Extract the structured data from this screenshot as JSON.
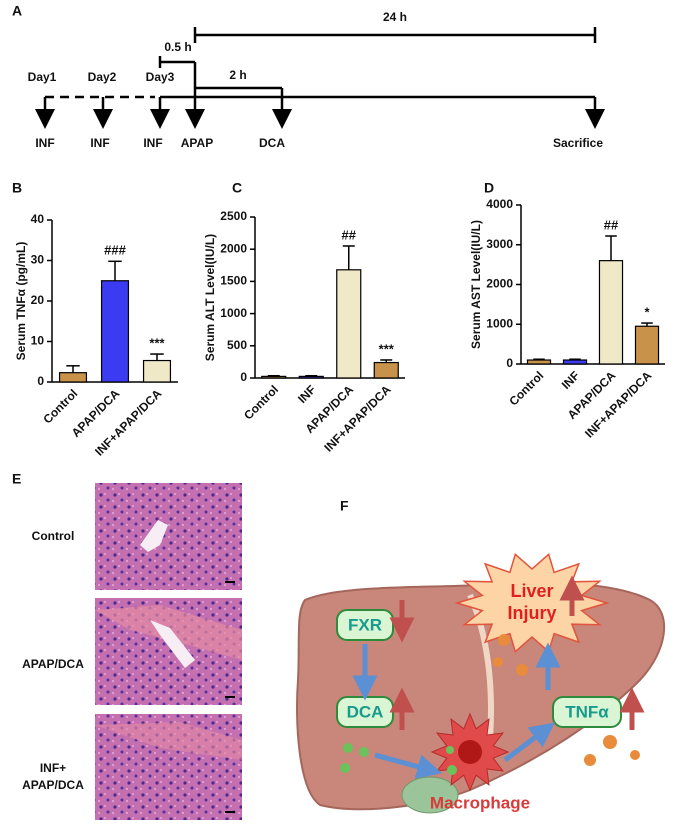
{
  "timeline": {
    "label": "A",
    "duration_total": "24 h",
    "duration_pretreat": "0.5 h",
    "duration_dca": "2 h",
    "days": [
      "Day1",
      "Day2",
      "Day3"
    ],
    "events": [
      "INF",
      "INF",
      "INF",
      "APAP",
      "DCA",
      "Sacrifice"
    ]
  },
  "chart_data": [
    {
      "type": "bar",
      "panel_label": "B",
      "ylabel": "Serum TNFα (pg/mL)",
      "categories": [
        "Control",
        "APAP/DCA",
        "INF+APAP/DCA"
      ],
      "values": [
        2.3,
        25,
        5.3
      ],
      "errors": [
        1.7,
        4.8,
        1.6
      ],
      "annotations": [
        null,
        "###",
        "***"
      ],
      "colors": [
        "#c8924a",
        "#3b3bf2",
        "#efe9c8"
      ],
      "ylim": [
        0,
        40
      ],
      "yticks": [
        0,
        10,
        20,
        30,
        40
      ]
    },
    {
      "type": "bar",
      "panel_label": "C",
      "ylabel": "Serum ALT Level(IU/L)",
      "categories": [
        "Control",
        "INF",
        "APAP/DCA",
        "INF+APAP/DCA"
      ],
      "values": [
        25,
        25,
        1680,
        240
      ],
      "errors": [
        10,
        10,
        370,
        40
      ],
      "annotations": [
        null,
        null,
        "##",
        "***"
      ],
      "colors": [
        "#c8924a",
        "#3b3bf2",
        "#efe9c8",
        "#c8924a"
      ],
      "ylim": [
        0,
        2500
      ],
      "yticks": [
        0,
        500,
        1000,
        1500,
        2000,
        2500
      ]
    },
    {
      "type": "bar",
      "panel_label": "D",
      "ylabel": "Serum AST Level(IU/L)",
      "categories": [
        "Control",
        "INF",
        "APAP/DCA",
        "INF+APAP/DCA"
      ],
      "values": [
        100,
        100,
        2600,
        950
      ],
      "errors": [
        20,
        20,
        620,
        80
      ],
      "annotations": [
        null,
        null,
        "##",
        "*"
      ],
      "colors": [
        "#c8924a",
        "#3b3bf2",
        "#efe9c8",
        "#c8924a"
      ],
      "ylim": [
        0,
        4000
      ],
      "yticks": [
        0,
        1000,
        2000,
        3000,
        4000
      ]
    }
  ],
  "histology": {
    "label": "E",
    "rows": [
      [
        "Control"
      ],
      [
        "APAP/DCA"
      ],
      [
        "INF+",
        "APAP/DCA"
      ]
    ]
  },
  "diagram": {
    "label": "F",
    "fxr": "FXR",
    "dca": "DCA",
    "tnf": "TNFα",
    "injury": [
      "Liver",
      "Injury"
    ],
    "cell": "Macrophage"
  }
}
